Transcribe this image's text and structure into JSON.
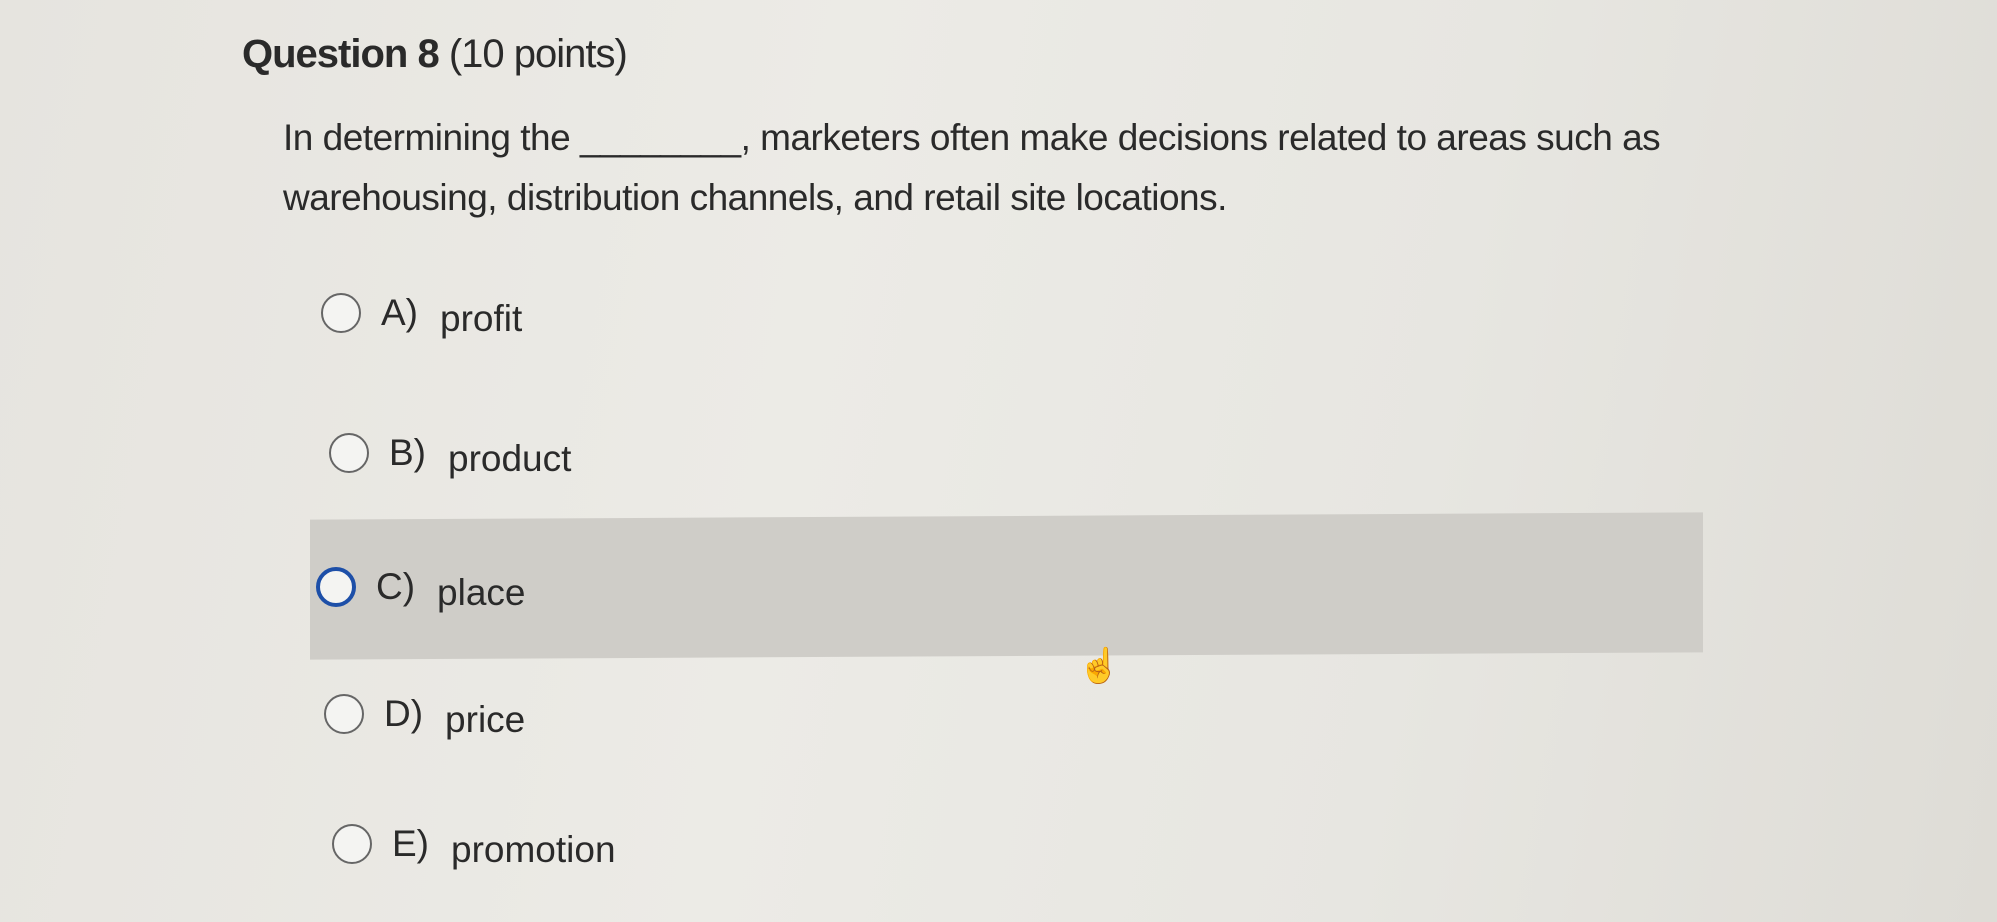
{
  "question": {
    "title": "Question 8",
    "points": "(10 points)",
    "text": "In determining the ________, marketers often make decisions related to areas such as warehousing, distribution channels, and retail site locations."
  },
  "options": [
    {
      "letter": "A)",
      "label": "profit"
    },
    {
      "letter": "B)",
      "label": "product"
    },
    {
      "letter": "C)",
      "label": "place",
      "hovered": true
    },
    {
      "letter": "D)",
      "label": "price"
    },
    {
      "letter": "E)",
      "label": "promotion"
    }
  ],
  "colors": {
    "focus_ring": "#1d4fa8",
    "hover_band": "#cfcdc8"
  },
  "cursor_icon": "hand-pointer-icon"
}
